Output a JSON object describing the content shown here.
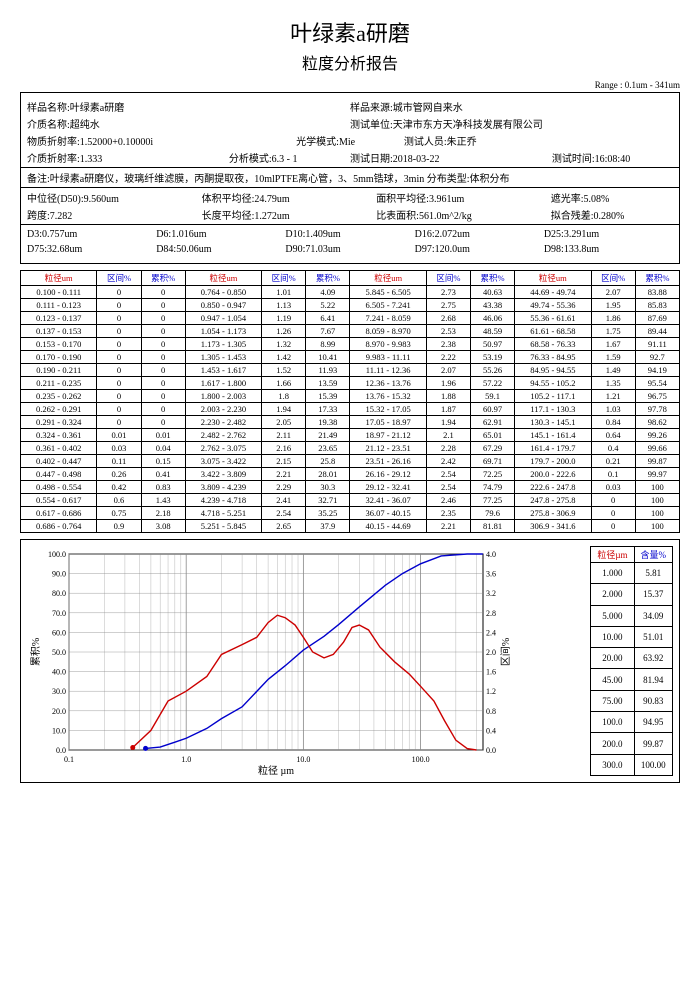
{
  "title": "叶绿素a研磨",
  "subtitle": "粒度分析报告",
  "range": "Range : 0.1um - 341um",
  "info": {
    "r1": {
      "a": "样品名称:叶绿素a研磨",
      "b": "样品来源:城市管网自来水"
    },
    "r2": {
      "a": "介质名称:超纯水",
      "b": "测试单位:天津市东方天净科技发展有限公司"
    },
    "r3": {
      "a": "物质折射率:1.52000+0.10000i",
      "b": "光学模式:Mie",
      "c": "测试人员:朱正乔"
    },
    "r4": {
      "a": "介质折射率:1.333",
      "b": "分析模式:6.3 - 1",
      "c": "测试日期:2018-03-22",
      "d": "测试时间:16:08:40"
    },
    "r5": "备注:叶绿素a研磨仪，玻璃纤维滤膜，丙酮提取夜，10mlPTFE离心管，3、5mm锆球，3min 分布类型:体积分布",
    "r6": {
      "a": "中位径(D50):9.560um",
      "b": "体积平均径:24.79um",
      "c": "面积平均径:3.961um",
      "d": "遮光率:5.08%"
    },
    "r7": {
      "a": "跨度:7.282",
      "b": "长度平均径:1.272um",
      "c": "比表面积:561.0m^2/kg",
      "d": "拟合残差:0.280%"
    }
  },
  "dvals": {
    "row1": [
      "D3:0.757um",
      "D6:1.016um",
      "D10:1.409um",
      "D16:2.072um",
      "D25:3.291um"
    ],
    "row2": [
      "D75:32.68um",
      "D84:50.06um",
      "D90:71.03um",
      "D97:120.0um",
      "D98:133.8um"
    ]
  },
  "table": {
    "headers": [
      "粒径um",
      "区间%",
      "累积%",
      "粒径um",
      "区间%",
      "累积%",
      "粒径um",
      "区间%",
      "累积%",
      "粒径um",
      "区间%",
      "累积%"
    ],
    "header_colors": [
      "red",
      "blue",
      "blue",
      "red",
      "blue",
      "blue",
      "red",
      "blue",
      "blue",
      "red",
      "blue",
      "blue"
    ],
    "rows": [
      [
        "0.100 - 0.111",
        "0",
        "0",
        "0.764 - 0.850",
        "1.01",
        "4.09",
        "5.845 - 6.505",
        "2.73",
        "40.63",
        "44.69 - 49.74",
        "2.07",
        "83.88"
      ],
      [
        "0.111 - 0.123",
        "0",
        "0",
        "0.850 - 0.947",
        "1.13",
        "5.22",
        "6.505 - 7.241",
        "2.75",
        "43.38",
        "49.74 - 55.36",
        "1.95",
        "85.83"
      ],
      [
        "0.123 - 0.137",
        "0",
        "0",
        "0.947 - 1.054",
        "1.19",
        "6.41",
        "7.241 - 8.059",
        "2.68",
        "46.06",
        "55.36 - 61.61",
        "1.86",
        "87.69"
      ],
      [
        "0.137 - 0.153",
        "0",
        "0",
        "1.054 - 1.173",
        "1.26",
        "7.67",
        "8.059 - 8.970",
        "2.53",
        "48.59",
        "61.61 - 68.58",
        "1.75",
        "89.44"
      ],
      [
        "0.153 - 0.170",
        "0",
        "0",
        "1.173 - 1.305",
        "1.32",
        "8.99",
        "8.970 - 9.983",
        "2.38",
        "50.97",
        "68.58 - 76.33",
        "1.67",
        "91.11"
      ],
      [
        "0.170 - 0.190",
        "0",
        "0",
        "1.305 - 1.453",
        "1.42",
        "10.41",
        "9.983 - 11.11",
        "2.22",
        "53.19",
        "76.33 - 84.95",
        "1.59",
        "92.7"
      ],
      [
        "0.190 - 0.211",
        "0",
        "0",
        "1.453 - 1.617",
        "1.52",
        "11.93",
        "11.11 - 12.36",
        "2.07",
        "55.26",
        "84.95 - 94.55",
        "1.49",
        "94.19"
      ],
      [
        "0.211 - 0.235",
        "0",
        "0",
        "1.617 - 1.800",
        "1.66",
        "13.59",
        "12.36 - 13.76",
        "1.96",
        "57.22",
        "94.55 - 105.2",
        "1.35",
        "95.54"
      ],
      [
        "0.235 - 0.262",
        "0",
        "0",
        "1.800 - 2.003",
        "1.8",
        "15.39",
        "13.76 - 15.32",
        "1.88",
        "59.1",
        "105.2 - 117.1",
        "1.21",
        "96.75"
      ],
      [
        "0.262 - 0.291",
        "0",
        "0",
        "2.003 - 2.230",
        "1.94",
        "17.33",
        "15.32 - 17.05",
        "1.87",
        "60.97",
        "117.1 - 130.3",
        "1.03",
        "97.78"
      ],
      [
        "0.291 - 0.324",
        "0",
        "0",
        "2.230 - 2.482",
        "2.05",
        "19.38",
        "17.05 - 18.97",
        "1.94",
        "62.91",
        "130.3 - 145.1",
        "0.84",
        "98.62"
      ],
      [
        "0.324 - 0.361",
        "0.01",
        "0.01",
        "2.482 - 2.762",
        "2.11",
        "21.49",
        "18.97 - 21.12",
        "2.1",
        "65.01",
        "145.1 - 161.4",
        "0.64",
        "99.26"
      ],
      [
        "0.361 - 0.402",
        "0.03",
        "0.04",
        "2.762 - 3.075",
        "2.16",
        "23.65",
        "21.12 - 23.51",
        "2.28",
        "67.29",
        "161.4 - 179.7",
        "0.4",
        "99.66"
      ],
      [
        "0.402 - 0.447",
        "0.11",
        "0.15",
        "3.075 - 3.422",
        "2.15",
        "25.8",
        "23.51 - 26.16",
        "2.42",
        "69.71",
        "179.7 - 200.0",
        "0.21",
        "99.87"
      ],
      [
        "0.447 - 0.498",
        "0.26",
        "0.41",
        "3.422 - 3.809",
        "2.21",
        "28.01",
        "26.16 - 29.12",
        "2.54",
        "72.25",
        "200.0 - 222.6",
        "0.1",
        "99.97"
      ],
      [
        "0.498 - 0.554",
        "0.42",
        "0.83",
        "3.809 - 4.239",
        "2.29",
        "30.3",
        "29.12 - 32.41",
        "2.54",
        "74.79",
        "222.6 - 247.8",
        "0.03",
        "100"
      ],
      [
        "0.554 - 0.617",
        "0.6",
        "1.43",
        "4.239 - 4.718",
        "2.41",
        "32.71",
        "32.41 - 36.07",
        "2.46",
        "77.25",
        "247.8 - 275.8",
        "0",
        "100"
      ],
      [
        "0.617 - 0.686",
        "0.75",
        "2.18",
        "4.718 - 5.251",
        "2.54",
        "35.25",
        "36.07 - 40.15",
        "2.35",
        "79.6",
        "275.8 - 306.9",
        "0",
        "100"
      ],
      [
        "0.686 - 0.764",
        "0.9",
        "3.08",
        "5.251 - 5.845",
        "2.65",
        "37.9",
        "40.15 - 44.69",
        "2.21",
        "81.81",
        "306.9 - 341.6",
        "0",
        "100"
      ]
    ]
  },
  "chart": {
    "xlabel": "粒径 µm",
    "ylabel_left": "累积%",
    "ylabel_right": "区间%",
    "xticks": [
      "0.1",
      "1.0",
      "10.0",
      "100.0"
    ],
    "yticks_left": [
      "0.0",
      "10.0",
      "20.0",
      "30.0",
      "40.0",
      "50.0",
      "60.0",
      "70.0",
      "80.0",
      "90.0",
      "100.0"
    ],
    "yticks_right": [
      "0.0",
      "0.4",
      "0.8",
      "1.2",
      "1.6",
      "2.0",
      "2.4",
      "2.8",
      "3.2",
      "3.6",
      "4.0"
    ],
    "cumulative_color": "#0000cc",
    "interval_color": "#cc0000",
    "grid_color": "#888",
    "cumulative": [
      [
        0.45,
        0.8
      ],
      [
        0.6,
        1.5
      ],
      [
        0.8,
        4
      ],
      [
        1,
        6
      ],
      [
        1.5,
        11
      ],
      [
        2,
        16
      ],
      [
        3,
        22
      ],
      [
        5,
        36
      ],
      [
        7,
        43
      ],
      [
        10,
        51
      ],
      [
        15,
        58
      ],
      [
        20,
        64
      ],
      [
        30,
        73
      ],
      [
        50,
        84
      ],
      [
        70,
        90
      ],
      [
        100,
        95
      ],
      [
        150,
        99
      ],
      [
        250,
        100
      ],
      [
        340,
        100
      ]
    ],
    "interval": [
      [
        0.35,
        0.05
      ],
      [
        0.5,
        0.4
      ],
      [
        0.7,
        1.0
      ],
      [
        1.0,
        1.2
      ],
      [
        1.5,
        1.5
      ],
      [
        2.0,
        1.95
      ],
      [
        3.0,
        2.15
      ],
      [
        4.0,
        2.3
      ],
      [
        5.0,
        2.6
      ],
      [
        6.0,
        2.75
      ],
      [
        7.0,
        2.7
      ],
      [
        8.5,
        2.55
      ],
      [
        10,
        2.3
      ],
      [
        12,
        2.0
      ],
      [
        15,
        1.88
      ],
      [
        18,
        1.95
      ],
      [
        22,
        2.2
      ],
      [
        26,
        2.5
      ],
      [
        30,
        2.55
      ],
      [
        36,
        2.45
      ],
      [
        45,
        2.1
      ],
      [
        60,
        1.8
      ],
      [
        80,
        1.55
      ],
      [
        100,
        1.3
      ],
      [
        130,
        1.0
      ],
      [
        160,
        0.6
      ],
      [
        200,
        0.2
      ],
      [
        250,
        0.03
      ],
      [
        300,
        0
      ]
    ]
  },
  "side": {
    "headers": [
      "粒径µm",
      "含量%"
    ],
    "rows": [
      [
        "1.000",
        "5.81"
      ],
      [
        "2.000",
        "15.37"
      ],
      [
        "5.000",
        "34.09"
      ],
      [
        "10.00",
        "51.01"
      ],
      [
        "20.00",
        "63.92"
      ],
      [
        "45.00",
        "81.94"
      ],
      [
        "75.00",
        "90.83"
      ],
      [
        "100.0",
        "94.95"
      ],
      [
        "200.0",
        "99.87"
      ],
      [
        "300.0",
        "100.00"
      ]
    ]
  }
}
